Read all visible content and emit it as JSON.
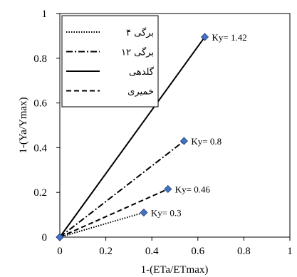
{
  "chart_data": {
    "type": "scatter",
    "xlabel": "1-(ETa/ETmax)",
    "ylabel": "1-(Ya/Ymax)",
    "xlim": [
      0,
      1
    ],
    "ylim": [
      0,
      1
    ],
    "x_ticks": [
      "0",
      "0.2",
      "0.4",
      "0.6",
      "0.8",
      "1"
    ],
    "y_ticks": [
      "0",
      "0.2",
      "0.4",
      "0.6",
      "0.8",
      "1"
    ],
    "grid": false,
    "legend_position": "top-left",
    "marker_color": "#4472C4",
    "series": [
      {
        "name": "۴ برگی",
        "line_style": "dotted",
        "points": [
          [
            0,
            0
          ],
          [
            0.365,
            0.11
          ]
        ],
        "label": "Ky= 0.3"
      },
      {
        "name": "۱۲ برگی",
        "line_style": "dash-dot",
        "points": [
          [
            0,
            0
          ],
          [
            0.54,
            0.43
          ]
        ],
        "label": "Ky= 0.8"
      },
      {
        "name": "گلدهی",
        "line_style": "solid",
        "points": [
          [
            0,
            0
          ],
          [
            0.63,
            0.895
          ]
        ],
        "label": "Ky= 1.42"
      },
      {
        "name": "خمیری",
        "line_style": "dashed",
        "points": [
          [
            0,
            0
          ],
          [
            0.47,
            0.215
          ]
        ],
        "label": "Ky= 0.46"
      }
    ]
  }
}
